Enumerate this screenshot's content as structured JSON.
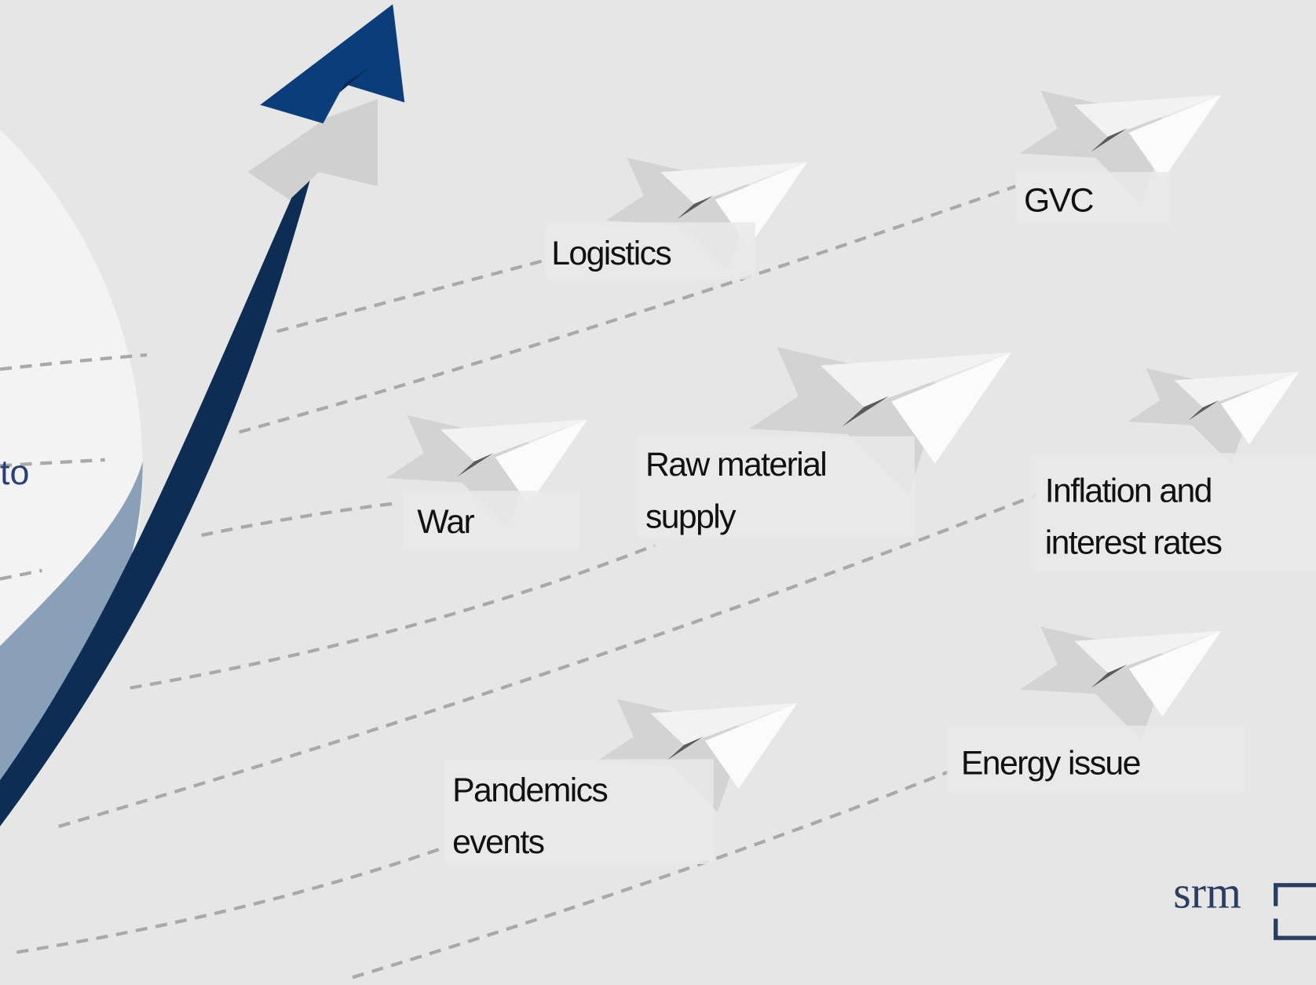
{
  "fragments": [
    "to"
  ],
  "labels": [
    {
      "lines": [
        "Logistics"
      ]
    },
    {
      "lines": [
        "GVC"
      ]
    },
    {
      "lines": [
        "War"
      ]
    },
    {
      "lines": [
        "Raw material",
        "supply"
      ]
    },
    {
      "lines": [
        "Inflation and",
        "interest rates"
      ]
    },
    {
      "lines": [
        "Pandemics",
        "events"
      ]
    },
    {
      "lines": [
        "Energy issue"
      ]
    }
  ],
  "logo": "srm"
}
